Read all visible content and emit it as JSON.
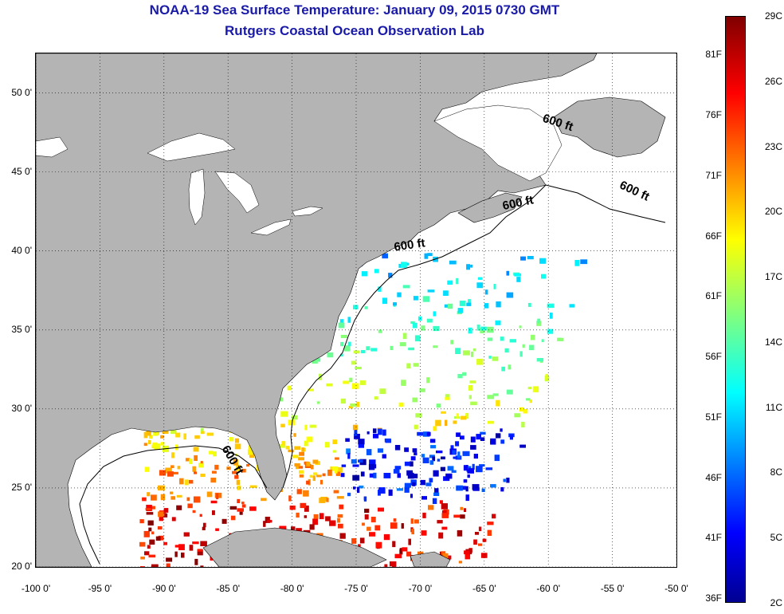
{
  "title": {
    "line1": "NOAA-19 Sea Surface Temperature:  January 09, 2015 0730 GMT",
    "line2": "Rutgers Coastal Ocean Observation Lab"
  },
  "map": {
    "lon_range": [
      -100,
      -50
    ],
    "lat_range": [
      20,
      52.5
    ],
    "lat_ticks": [
      {
        "value": 50,
        "label": "50 0'"
      },
      {
        "value": 45,
        "label": "45 0'"
      },
      {
        "value": 40,
        "label": "40 0'"
      },
      {
        "value": 35,
        "label": "35 0'"
      },
      {
        "value": 30,
        "label": "30 0'"
      },
      {
        "value": 25,
        "label": "25 0'"
      },
      {
        "value": 20,
        "label": "20 0'"
      }
    ],
    "lon_ticks": [
      {
        "value": -100,
        "label": "-100 0'"
      },
      {
        "value": -95,
        "label": "-95 0'"
      },
      {
        "value": -90,
        "label": "-90 0'"
      },
      {
        "value": -85,
        "label": "-85 0'"
      },
      {
        "value": -80,
        "label": "-80 0'"
      },
      {
        "value": -75,
        "label": "-75 0'"
      },
      {
        "value": -70,
        "label": "-70 0'"
      },
      {
        "value": -65,
        "label": "-65 0'"
      },
      {
        "value": -60,
        "label": "-60 0'"
      },
      {
        "value": -55,
        "label": "-55 0'"
      },
      {
        "value": -50,
        "label": "-50 0'"
      }
    ],
    "grid": true,
    "land_color": "#b4b4b4",
    "cloud_color": "#ffffff",
    "depth_labels": [
      {
        "text": "600 ft",
        "lon": -60.5,
        "lat": 48.2
      },
      {
        "text": "600 ft",
        "lon": -54.5,
        "lat": 44.0
      },
      {
        "text": "600 ft",
        "lon": -63.5,
        "lat": 42.6
      },
      {
        "text": "600 ft",
        "lon": -72.0,
        "lat": 40.0
      },
      {
        "text": "600 ft",
        "lon": -85.5,
        "lat": 27.5
      }
    ]
  },
  "colorbar": {
    "colormap": "jet",
    "range_c": [
      2,
      29
    ],
    "labels_c": [
      {
        "value": 29,
        "label": "29C"
      },
      {
        "value": 26,
        "label": "26C"
      },
      {
        "value": 23,
        "label": "23C"
      },
      {
        "value": 20,
        "label": "20C"
      },
      {
        "value": 17,
        "label": "17C"
      },
      {
        "value": 14,
        "label": "14C"
      },
      {
        "value": 11,
        "label": "11C"
      },
      {
        "value": 8,
        "label": "8C"
      },
      {
        "value": 5,
        "label": "5C"
      },
      {
        "value": 2,
        "label": "2C"
      }
    ],
    "labels_f": [
      {
        "value": 81,
        "label": "81F"
      },
      {
        "value": 76,
        "label": "76F"
      },
      {
        "value": 71,
        "label": "71F"
      },
      {
        "value": 66,
        "label": "66F"
      },
      {
        "value": 61,
        "label": "61F"
      },
      {
        "value": 56,
        "label": "56F"
      },
      {
        "value": 51,
        "label": "51F"
      },
      {
        "value": 46,
        "label": "46F"
      },
      {
        "value": 41,
        "label": "41F"
      },
      {
        "value": 36,
        "label": "36F"
      }
    ]
  }
}
